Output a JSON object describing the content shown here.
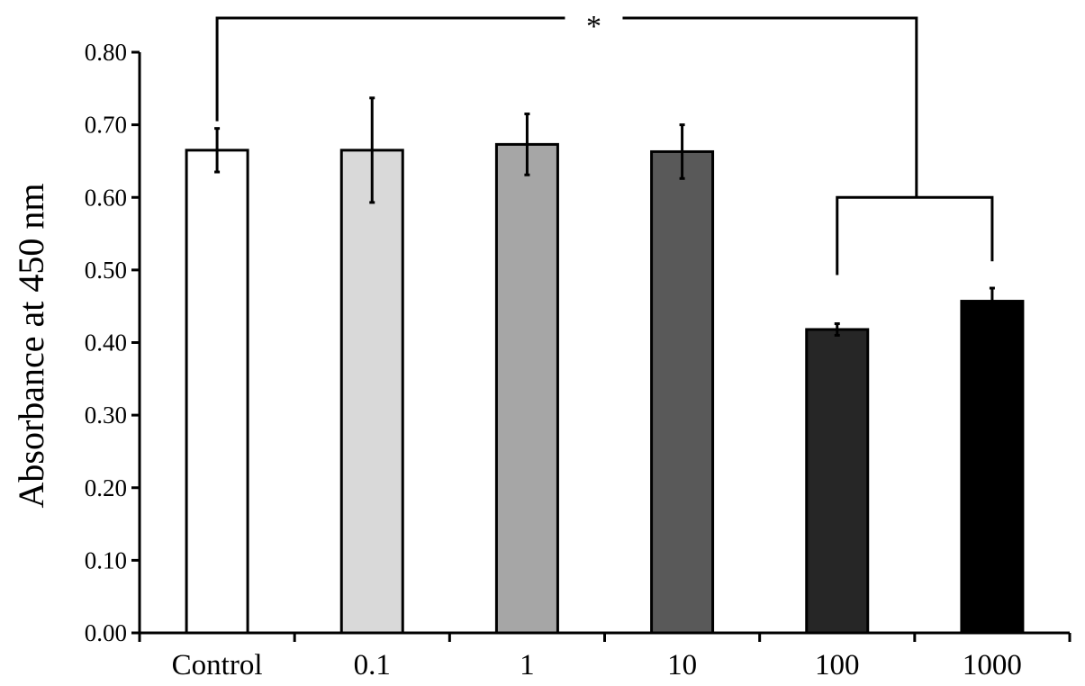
{
  "chart_data": {
    "type": "bar",
    "title": "",
    "xlabel": "",
    "ylabel": "Absorbance at 450 nm",
    "ylim": [
      0,
      0.8
    ],
    "yticks": [
      "0.00",
      "0.10",
      "0.20",
      "0.30",
      "0.40",
      "0.50",
      "0.60",
      "0.70",
      "0.80"
    ],
    "ytick_values": [
      0,
      0.1,
      0.2,
      0.3,
      0.4,
      0.5,
      0.6,
      0.7,
      0.8
    ],
    "categories": [
      "Control",
      "0.1",
      "1",
      "10",
      "100",
      "1000"
    ],
    "values": [
      0.665,
      0.665,
      0.673,
      0.663,
      0.418,
      0.457
    ],
    "errors": [
      0.03,
      0.072,
      0.042,
      0.037,
      0.008,
      0.018
    ],
    "bar_colors": [
      "#ffffff",
      "#d9d9d9",
      "#a6a6a6",
      "#595959",
      "#262626",
      "#000000"
    ],
    "grid": false,
    "legend": "none",
    "significance": {
      "label": "*",
      "from_category": "Control",
      "to_categories": [
        "100",
        "1000"
      ]
    }
  }
}
